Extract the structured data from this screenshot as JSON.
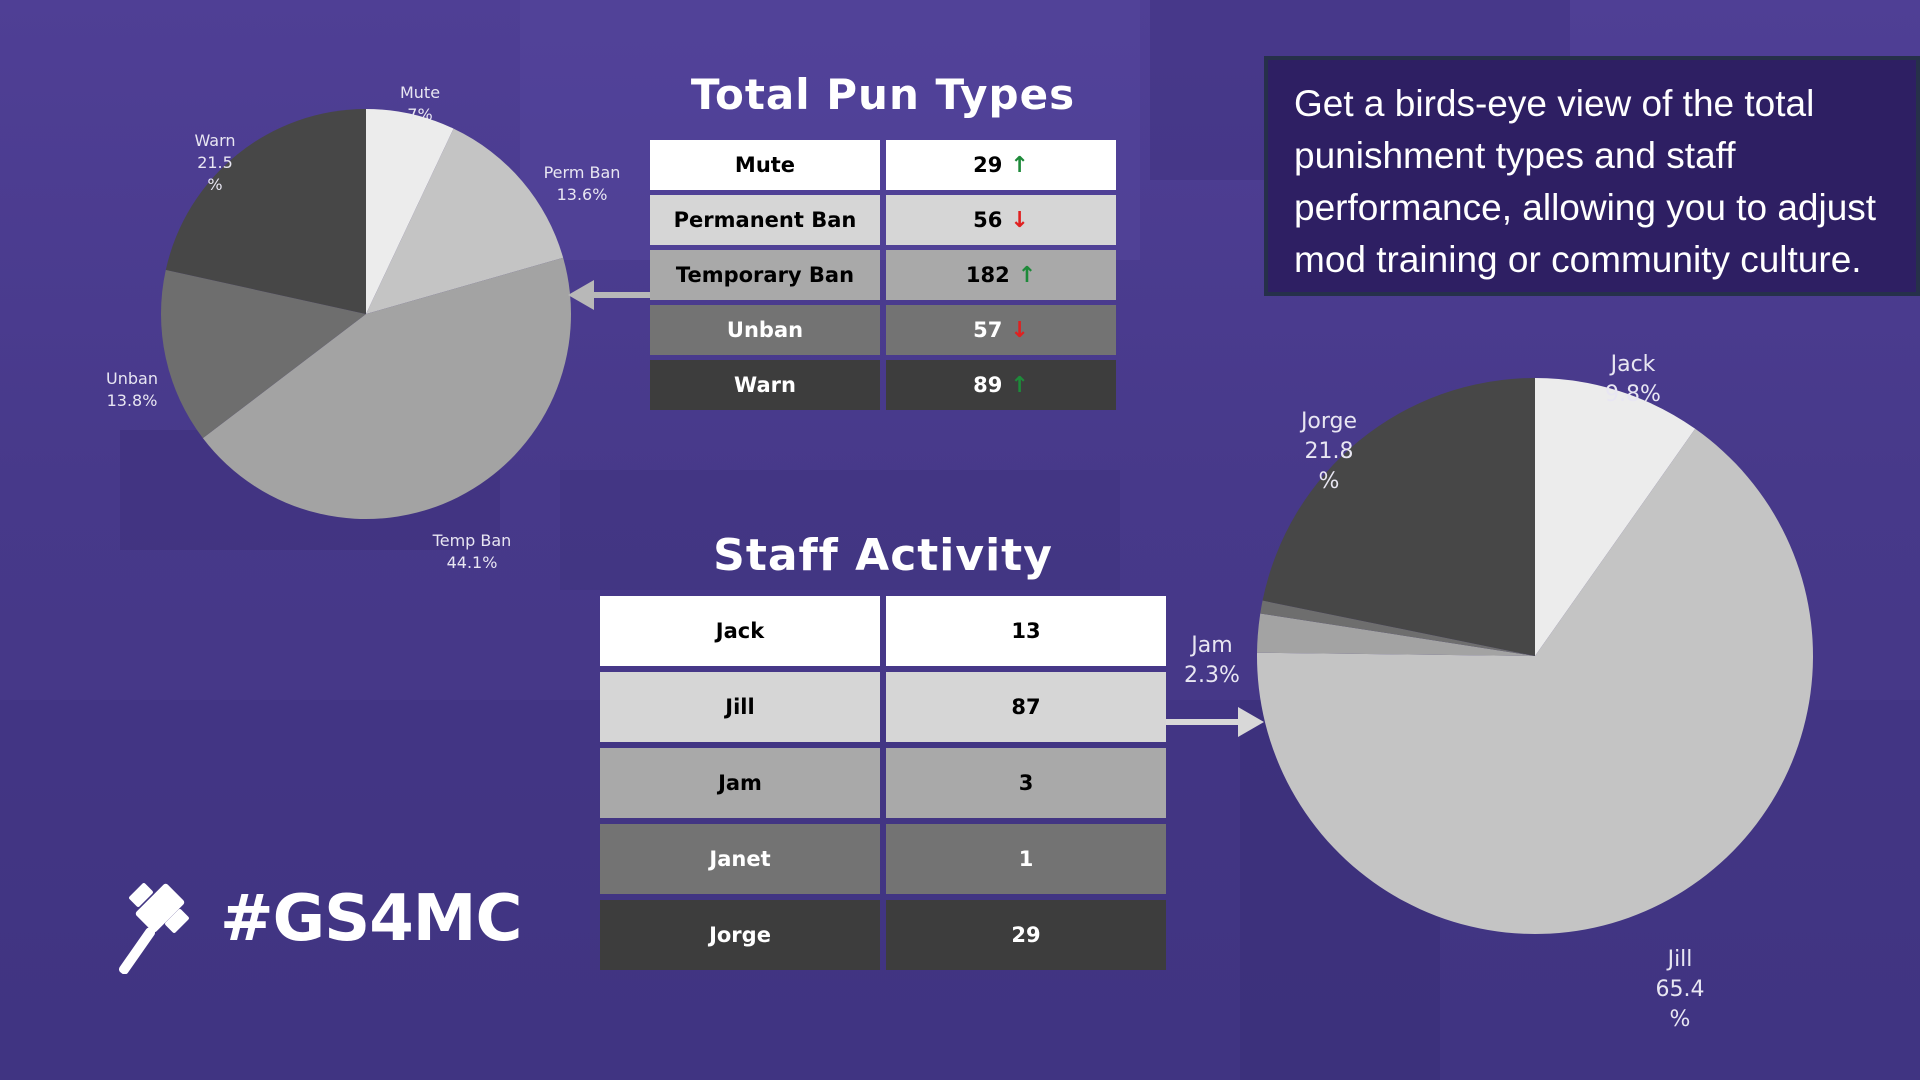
{
  "colors": {
    "background": "#4a3d8c",
    "info_box": "#2e1f63",
    "row_shades": [
      "#ffffff",
      "#d6d6d6",
      "#a9a9a9",
      "#737373",
      "#3d3d3d"
    ],
    "up_arrow": "#1e8a3a",
    "down_arrow": "#e02020"
  },
  "info_text": "Get a birds-eye view of the total punishment types and staff performance, allowing you to adjust mod training or community culture.",
  "brand": {
    "text": "#GS4MC",
    "icon": "gavel-icon"
  },
  "pun_types": {
    "title": "Total Pun Types",
    "rows": [
      {
        "label": "Mute",
        "value": "29",
        "trend": "up"
      },
      {
        "label": "Permanent Ban",
        "value": "56",
        "trend": "down"
      },
      {
        "label": "Temporary Ban",
        "value": "182",
        "trend": "up"
      },
      {
        "label": "Unban",
        "value": "57",
        "trend": "down"
      },
      {
        "label": "Warn",
        "value": "89",
        "trend": "up"
      }
    ]
  },
  "staff_activity": {
    "title": "Staff Activity",
    "rows": [
      {
        "label": "Jack",
        "value": "13"
      },
      {
        "label": "Jill",
        "value": "87"
      },
      {
        "label": "Jam",
        "value": "3"
      },
      {
        "label": "Janet",
        "value": "1"
      },
      {
        "label": "Jorge",
        "value": "29"
      }
    ]
  },
  "chart_data": [
    {
      "type": "pie",
      "slices": [
        {
          "label": "Mute",
          "pct_text": "7%",
          "value": 29,
          "color": "#ececec"
        },
        {
          "label": "Perm Ban",
          "pct_text": "13.6%",
          "value": 56,
          "color": "#c4c4c4"
        },
        {
          "label": "Temp Ban",
          "pct_text": "44.1%",
          "value": 182,
          "color": "#a3a3a3"
        },
        {
          "label": "Unban",
          "pct_text": "13.8%",
          "value": 57,
          "color": "#6e6e6e"
        },
        {
          "label": "Warn",
          "pct_text": "21.5\n%",
          "value": 89,
          "color": "#474747"
        }
      ]
    },
    {
      "type": "pie",
      "slices": [
        {
          "label": "Jack",
          "pct_text": "9.8%",
          "value": 13,
          "color": "#ececec"
        },
        {
          "label": "Jill",
          "pct_text": "65.4\n%",
          "value": 87,
          "color": "#c4c4c4"
        },
        {
          "label": "Jam",
          "pct_text": "2.3%",
          "value": 3,
          "color": "#a3a3a3"
        },
        {
          "label": "Janet",
          "pct_text": "",
          "value": 1,
          "color": "#6e6e6e"
        },
        {
          "label": "Jorge",
          "pct_text": "21.8\n%",
          "value": 29,
          "color": "#474747"
        }
      ]
    }
  ]
}
